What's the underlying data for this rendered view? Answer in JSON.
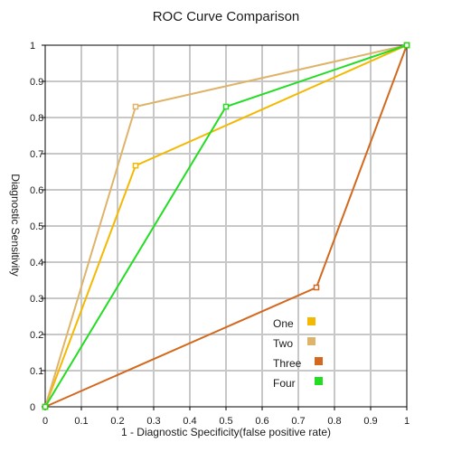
{
  "chart_data": {
    "type": "line",
    "title": "ROC Curve Comparison",
    "xlabel": "1 - Diagnostic Specificity(false positive rate)",
    "ylabel": "Diagnostic Sensitivity",
    "xlim": [
      0,
      1
    ],
    "ylim": [
      0,
      1
    ],
    "x_ticks": [
      "0",
      "0.1",
      "0.2",
      "0.3",
      "0.4",
      "0.5",
      "0.6",
      "0.7",
      "0.8",
      "0.9",
      "1"
    ],
    "y_ticks": [
      "0",
      "0.1",
      "0.2",
      "0.3",
      "0.4",
      "0.5",
      "0.6",
      "0.7",
      "0.8",
      "0.9",
      "1"
    ],
    "grid": true,
    "legend_position": "bottom-right",
    "series": [
      {
        "name": "One",
        "color": "#f5b800",
        "x": [
          0,
          0.25,
          1
        ],
        "y": [
          0,
          0.667,
          1
        ]
      },
      {
        "name": "Two",
        "color": "#deb46a",
        "x": [
          0,
          0.25,
          1
        ],
        "y": [
          0,
          0.83,
          1
        ]
      },
      {
        "name": "Three",
        "color": "#d2691e",
        "x": [
          0,
          0.75,
          1
        ],
        "y": [
          0,
          0.33,
          1
        ]
      },
      {
        "name": "Four",
        "color": "#22dd22",
        "x": [
          0,
          0.5,
          1
        ],
        "y": [
          0,
          0.83,
          1
        ]
      }
    ]
  }
}
